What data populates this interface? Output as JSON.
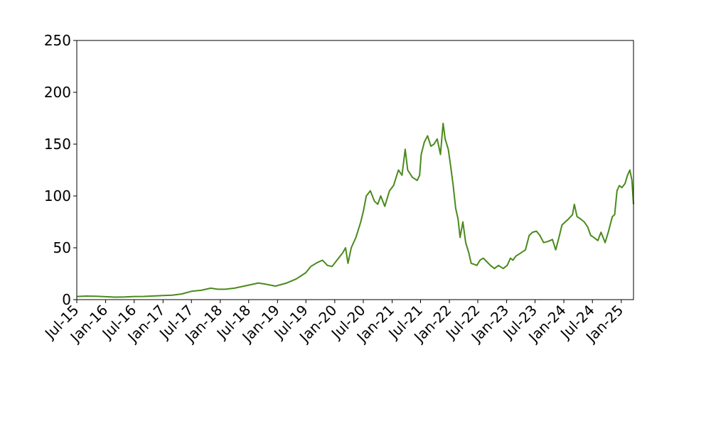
{
  "chart_data": {
    "type": "line",
    "title": "",
    "xlabel": "",
    "ylabel": "",
    "ylim": [
      0,
      250
    ],
    "xlim": [
      "2015-07-01",
      "2025-03-20"
    ],
    "yticks": [
      0,
      50,
      100,
      150,
      200,
      250
    ],
    "xtick_labels": [
      {
        "date": "2015-07-01",
        "label": "Jul-15"
      },
      {
        "date": "2016-01-01",
        "label": "Jan-16"
      },
      {
        "date": "2016-07-01",
        "label": "Jul-16"
      },
      {
        "date": "2017-01-01",
        "label": "Jan-17"
      },
      {
        "date": "2017-07-01",
        "label": "Jul-17"
      },
      {
        "date": "2018-01-01",
        "label": "Jan-18"
      },
      {
        "date": "2018-07-01",
        "label": "Jul-18"
      },
      {
        "date": "2019-01-01",
        "label": "Jan-19"
      },
      {
        "date": "2019-07-01",
        "label": "Jul-19"
      },
      {
        "date": "2020-01-01",
        "label": "Jan-20"
      },
      {
        "date": "2020-07-01",
        "label": "Jul-20"
      },
      {
        "date": "2021-01-01",
        "label": "Jan-21"
      },
      {
        "date": "2021-07-01",
        "label": "Jul-21"
      },
      {
        "date": "2022-01-01",
        "label": "Jan-22"
      },
      {
        "date": "2022-07-01",
        "label": "Jul-22"
      },
      {
        "date": "2023-01-01",
        "label": "Jan-23"
      },
      {
        "date": "2023-07-01",
        "label": "Jul-23"
      },
      {
        "date": "2024-01-01",
        "label": "Jan-24"
      },
      {
        "date": "2024-07-01",
        "label": "Jul-24"
      },
      {
        "date": "2025-01-01",
        "label": "Jan-25"
      }
    ],
    "grid": false,
    "legend": "none",
    "series": [
      {
        "color": "#4a8a1c",
        "points": [
          [
            "2015-07-01",
            3
          ],
          [
            "2015-09-01",
            3.4
          ],
          [
            "2015-11-01",
            3.2
          ],
          [
            "2016-01-01",
            2.8
          ],
          [
            "2016-03-01",
            2.4
          ],
          [
            "2016-05-01",
            2.6
          ],
          [
            "2016-07-01",
            3.0
          ],
          [
            "2016-09-01",
            3.1
          ],
          [
            "2016-11-01",
            3.5
          ],
          [
            "2017-01-01",
            4.0
          ],
          [
            "2017-03-01",
            4.3
          ],
          [
            "2017-05-01",
            5.5
          ],
          [
            "2017-07-01",
            8
          ],
          [
            "2017-09-01",
            9
          ],
          [
            "2017-11-01",
            11
          ],
          [
            "2017-12-15",
            10
          ],
          [
            "2018-02-01",
            10
          ],
          [
            "2018-04-01",
            11
          ],
          [
            "2018-06-01",
            13
          ],
          [
            "2018-07-01",
            14
          ],
          [
            "2018-09-01",
            16
          ],
          [
            "2018-10-15",
            15
          ],
          [
            "2018-12-20",
            13
          ],
          [
            "2019-01-10",
            14
          ],
          [
            "2019-03-01",
            16
          ],
          [
            "2019-05-01",
            20
          ],
          [
            "2019-06-01",
            23
          ],
          [
            "2019-07-01",
            26
          ],
          [
            "2019-08-01",
            32
          ],
          [
            "2019-09-15",
            36
          ],
          [
            "2019-10-15",
            38
          ],
          [
            "2019-11-15",
            33
          ],
          [
            "2019-12-15",
            32
          ],
          [
            "2020-01-15",
            38
          ],
          [
            "2020-02-20",
            45
          ],
          [
            "2020-03-10",
            50
          ],
          [
            "2020-03-25",
            35
          ],
          [
            "2020-04-15",
            50
          ],
          [
            "2020-05-15",
            60
          ],
          [
            "2020-06-15",
            75
          ],
          [
            "2020-07-01",
            85
          ],
          [
            "2020-07-20",
            100
          ],
          [
            "2020-08-15",
            105
          ],
          [
            "2020-09-10",
            95
          ],
          [
            "2020-10-01",
            92
          ],
          [
            "2020-10-20",
            100
          ],
          [
            "2020-11-15",
            90
          ],
          [
            "2020-12-15",
            105
          ],
          [
            "2021-01-10",
            110
          ],
          [
            "2021-02-10",
            125
          ],
          [
            "2021-03-05",
            120
          ],
          [
            "2021-03-25",
            145
          ],
          [
            "2021-04-10",
            125
          ],
          [
            "2021-05-10",
            118
          ],
          [
            "2021-06-10",
            115
          ],
          [
            "2021-06-25",
            120
          ],
          [
            "2021-07-05",
            140
          ],
          [
            "2021-07-25",
            152
          ],
          [
            "2021-08-15",
            158
          ],
          [
            "2021-09-05",
            148
          ],
          [
            "2021-09-25",
            150
          ],
          [
            "2021-10-15",
            155
          ],
          [
            "2021-11-05",
            140
          ],
          [
            "2021-11-22",
            170
          ],
          [
            "2021-12-05",
            155
          ],
          [
            "2021-12-25",
            145
          ],
          [
            "2022-01-10",
            128
          ],
          [
            "2022-01-25",
            110
          ],
          [
            "2022-02-10",
            88
          ],
          [
            "2022-02-25",
            78
          ],
          [
            "2022-03-10",
            60
          ],
          [
            "2022-03-28",
            75
          ],
          [
            "2022-04-15",
            55
          ],
          [
            "2022-05-05",
            45
          ],
          [
            "2022-05-20",
            35
          ],
          [
            "2022-06-10",
            34
          ],
          [
            "2022-06-25",
            33
          ],
          [
            "2022-07-15",
            38
          ],
          [
            "2022-08-05",
            40
          ],
          [
            "2022-08-25",
            37
          ],
          [
            "2022-09-20",
            33
          ],
          [
            "2022-10-15",
            30
          ],
          [
            "2022-11-10",
            33
          ],
          [
            "2022-12-10",
            30
          ],
          [
            "2023-01-05",
            33
          ],
          [
            "2023-01-25",
            40
          ],
          [
            "2023-02-10",
            38
          ],
          [
            "2023-03-01",
            42
          ],
          [
            "2023-04-01",
            45
          ],
          [
            "2023-05-01",
            48
          ],
          [
            "2023-05-25",
            62
          ],
          [
            "2023-06-15",
            65
          ],
          [
            "2023-07-10",
            66
          ],
          [
            "2023-08-01",
            62
          ],
          [
            "2023-08-25",
            55
          ],
          [
            "2023-09-20",
            56
          ],
          [
            "2023-10-20",
            58
          ],
          [
            "2023-11-10",
            48
          ],
          [
            "2023-12-01",
            60
          ],
          [
            "2023-12-20",
            72
          ],
          [
            "2024-01-10",
            75
          ],
          [
            "2024-02-01",
            78
          ],
          [
            "2024-02-25",
            82
          ],
          [
            "2024-03-08",
            92
          ],
          [
            "2024-03-25",
            80
          ],
          [
            "2024-04-15",
            78
          ],
          [
            "2024-05-10",
            75
          ],
          [
            "2024-06-01",
            70
          ],
          [
            "2024-06-20",
            62
          ],
          [
            "2024-07-10",
            60
          ],
          [
            "2024-08-05",
            57
          ],
          [
            "2024-08-25",
            65
          ],
          [
            "2024-09-20",
            55
          ],
          [
            "2024-10-10",
            65
          ],
          [
            "2024-11-05",
            80
          ],
          [
            "2024-11-20",
            82
          ],
          [
            "2024-12-05",
            105
          ],
          [
            "2024-12-20",
            110
          ],
          [
            "2025-01-05",
            108
          ],
          [
            "2025-01-25",
            112
          ],
          [
            "2025-02-10",
            120
          ],
          [
            "2025-02-25",
            125
          ],
          [
            "2025-03-10",
            115
          ],
          [
            "2025-03-20",
            92
          ]
        ]
      }
    ]
  }
}
